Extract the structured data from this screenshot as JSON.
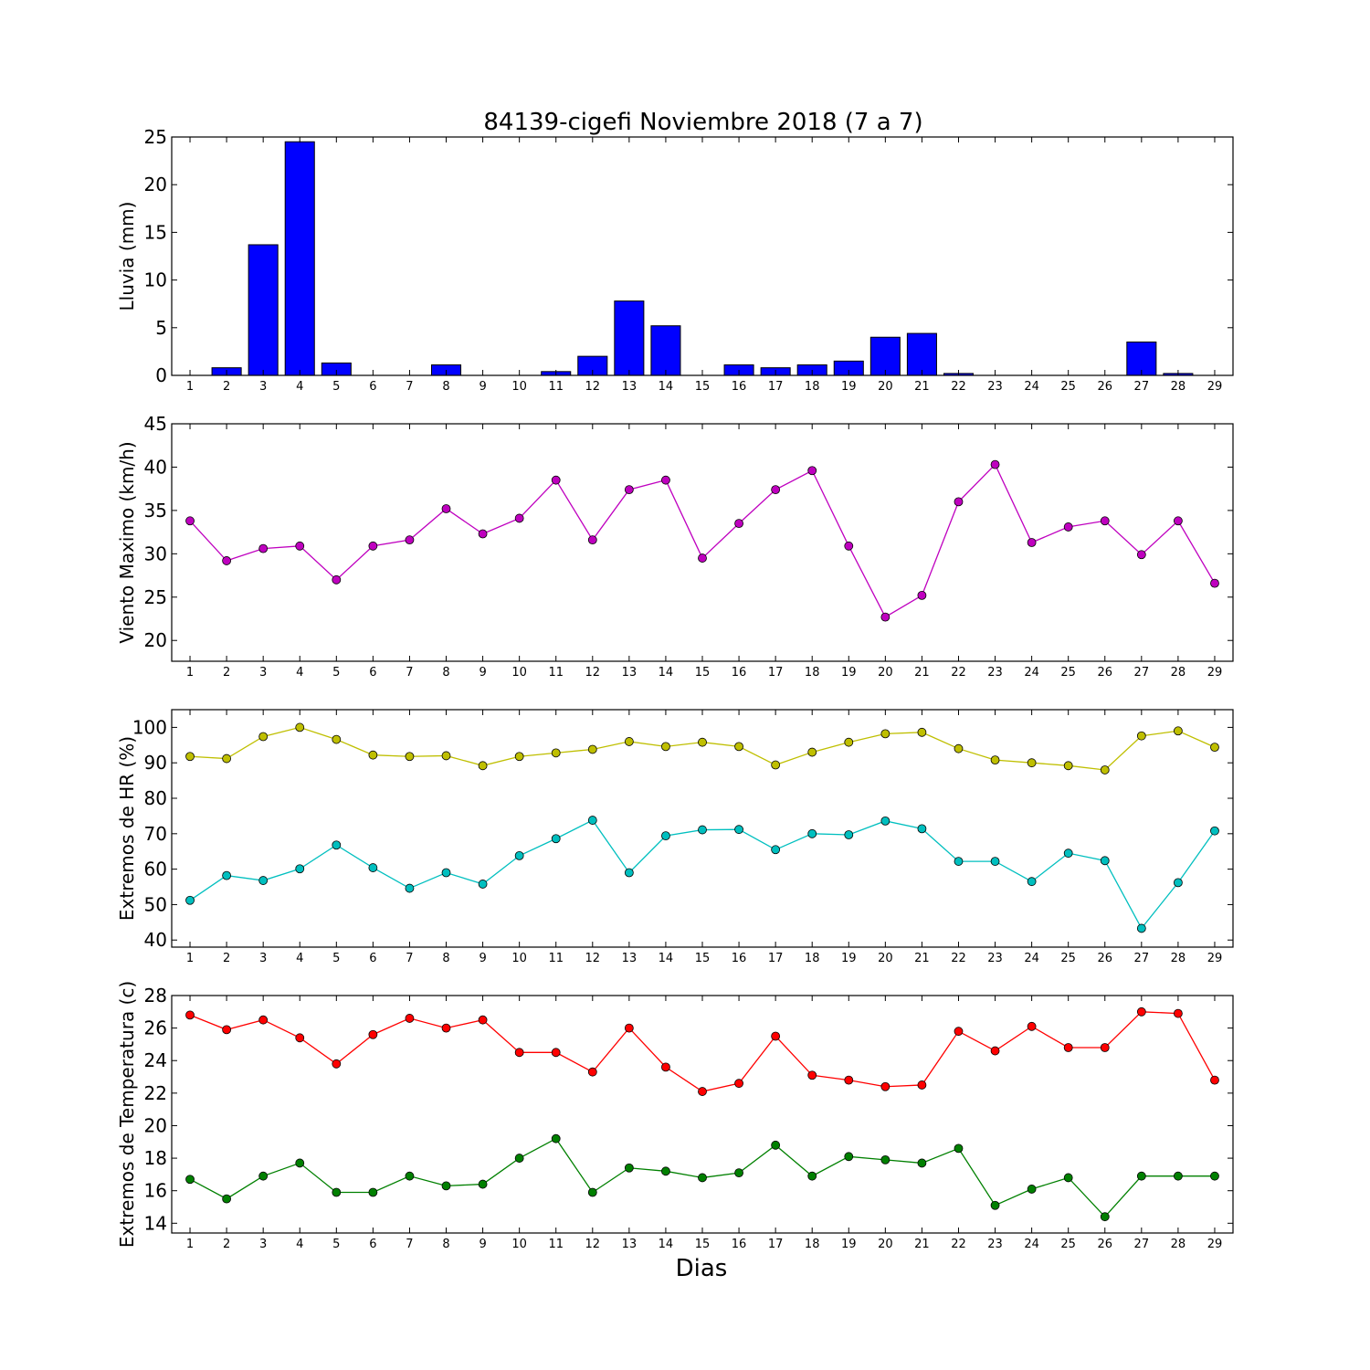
{
  "chart_data": {
    "title": "84139-cigefi Noviembre 2018  (7 a 7)",
    "xlabel": "Dias",
    "days": [
      1,
      2,
      3,
      4,
      5,
      6,
      7,
      8,
      9,
      10,
      11,
      12,
      13,
      14,
      15,
      16,
      17,
      18,
      19,
      20,
      21,
      22,
      23,
      24,
      25,
      26,
      27,
      28,
      29
    ],
    "panels": [
      {
        "type": "bar",
        "ylabel": "Lluvia (mm)",
        "ylim": [
          0,
          25
        ],
        "yticks": [
          0,
          5,
          10,
          15,
          20,
          25
        ],
        "series": [
          {
            "color": "#0000ff",
            "values": [
              0,
              0.8,
              13.7,
              24.5,
              1.3,
              0,
              0,
              1.1,
              0,
              0,
              0.4,
              2.0,
              7.8,
              5.2,
              0,
              1.1,
              0.8,
              1.1,
              1.5,
              4.0,
              4.4,
              0.2,
              0,
              0,
              0,
              0,
              3.5,
              0.2,
              0
            ]
          }
        ]
      },
      {
        "type": "line",
        "ylabel": "Viento Maximo (km/h)",
        "ylim": [
          17.6,
          45
        ],
        "yticks": [
          20,
          25,
          30,
          35,
          40,
          45
        ],
        "series": [
          {
            "color": "#bf00bf",
            "values": [
              33.8,
              29.2,
              30.6,
              30.9,
              27.0,
              30.9,
              31.6,
              35.2,
              32.3,
              34.1,
              38.5,
              31.6,
              37.4,
              38.5,
              29.5,
              33.5,
              37.4,
              39.6,
              30.9,
              22.7,
              25.2,
              36.0,
              40.3,
              31.3,
              33.1,
              33.8,
              29.9,
              33.8,
              26.6
            ]
          }
        ]
      },
      {
        "type": "line",
        "ylabel": "Extremos de HR (%)",
        "ylim": [
          38,
          105
        ],
        "yticks": [
          40,
          50,
          60,
          70,
          80,
          90,
          100
        ],
        "series": [
          {
            "color": "#bfbf00",
            "values": [
              91.8,
              91.2,
              97.4,
              100,
              96.6,
              92.2,
              91.8,
              92.0,
              89.2,
              91.8,
              92.8,
              93.8,
              96.0,
              94.6,
              95.8,
              94.6,
              89.4,
              93.0,
              95.8,
              98.2,
              98.6,
              94.0,
              90.8,
              90.0,
              89.2,
              88.0,
              97.6,
              99.0,
              94.4
            ]
          },
          {
            "color": "#00bfbf",
            "values": [
              51.2,
              58.2,
              56.8,
              60.1,
              66.8,
              60.4,
              54.6,
              59.0,
              55.8,
              63.8,
              68.6,
              73.8,
              59.0,
              69.4,
              71.1,
              71.2,
              65.5,
              70.0,
              69.7,
              73.6,
              71.4,
              62.2,
              62.2,
              56.5,
              64.5,
              62.4,
              43.3,
              56.2,
              70.8
            ]
          }
        ]
      },
      {
        "type": "line",
        "ylabel": "Extremos de Temperatura (c)",
        "ylim": [
          13.4,
          28
        ],
        "yticks": [
          14,
          16,
          18,
          20,
          22,
          24,
          26,
          28
        ],
        "series": [
          {
            "color": "#ff0000",
            "values": [
              26.8,
              25.9,
              26.5,
              25.4,
              23.8,
              25.6,
              26.6,
              26.0,
              26.5,
              24.5,
              24.5,
              23.3,
              26.0,
              23.6,
              22.1,
              22.6,
              25.5,
              23.1,
              22.8,
              22.4,
              22.5,
              25.8,
              24.6,
              26.1,
              24.8,
              24.8,
              27.0,
              26.9,
              22.8
            ]
          },
          {
            "color": "#008000",
            "values": [
              16.7,
              15.5,
              16.9,
              17.7,
              15.9,
              15.9,
              16.9,
              16.3,
              16.4,
              18.0,
              19.2,
              15.9,
              17.4,
              17.2,
              16.8,
              17.1,
              18.8,
              16.9,
              18.1,
              17.9,
              17.7,
              18.6,
              15.1,
              16.1,
              16.8,
              14.4,
              16.9,
              16.9,
              16.9
            ]
          }
        ]
      }
    ]
  }
}
